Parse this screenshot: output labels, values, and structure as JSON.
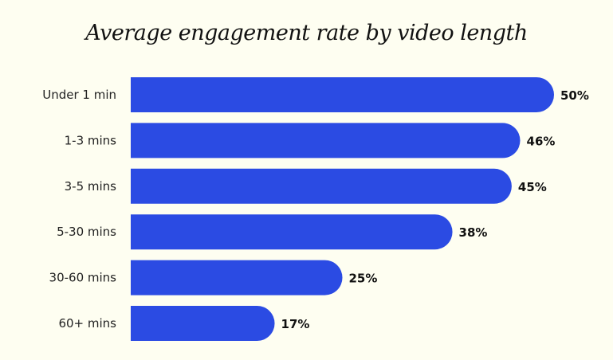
{
  "chart_data": {
    "type": "bar",
    "orientation": "horizontal",
    "title": "Average engagement rate by video length",
    "categories": [
      "Under 1 min",
      "1-3 mins",
      "3-5 mins",
      "5-30 mins",
      "30-60 mins",
      "60+ mins"
    ],
    "values": [
      50,
      46,
      45,
      38,
      25,
      17
    ],
    "value_labels": [
      "50%",
      "46%",
      "45%",
      "38%",
      "25%",
      "17%"
    ],
    "xlabel": "",
    "ylabel": "",
    "xlim": [
      0,
      50
    ],
    "grid": false,
    "bar_color": "#2B4BE3",
    "background": "#FEFEF1"
  }
}
